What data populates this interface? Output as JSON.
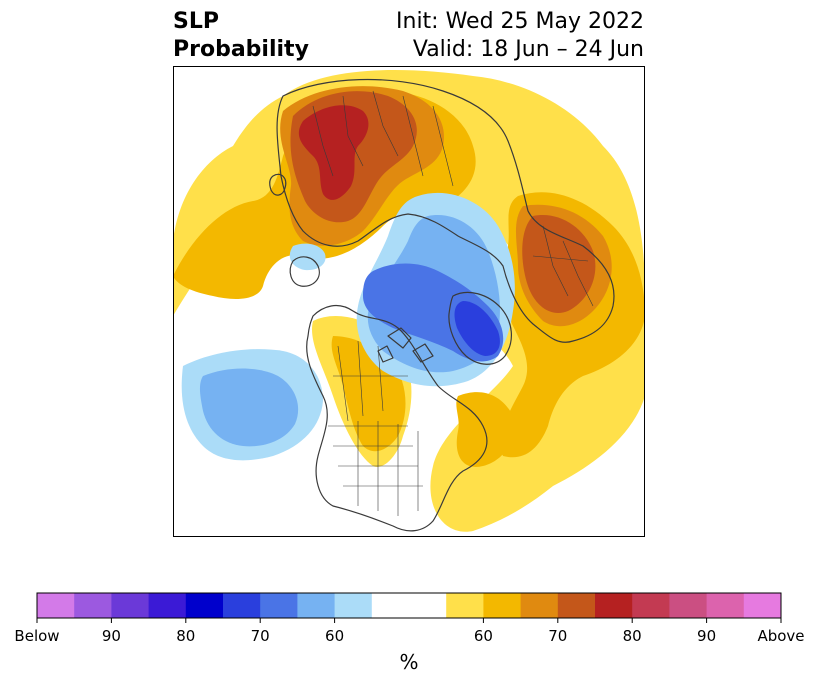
{
  "header": {
    "title_line1": "SLP",
    "title_line2": "Probability",
    "init_text": "Init: Wed 25 May 2022",
    "valid_text": "Valid: 18 Jun – 24 Jun"
  },
  "colorbar": {
    "segments": [
      {
        "color": "#d37ae8"
      },
      {
        "color": "#9c59e0"
      },
      {
        "color": "#6b39d8"
      },
      {
        "color": "#3b1ad6"
      },
      {
        "color": "#0000cc"
      },
      {
        "color": "#2a3fdd"
      },
      {
        "color": "#4a74e6"
      },
      {
        "color": "#76b2f2"
      },
      {
        "color": "#abdcf8"
      },
      {
        "color": "#ffffff"
      },
      {
        "color": "#ffffff"
      },
      {
        "color": "#ffe04a"
      },
      {
        "color": "#f3b800"
      },
      {
        "color": "#e08a10"
      },
      {
        "color": "#c4571a"
      },
      {
        "color": "#b52121"
      },
      {
        "color": "#c33a52"
      },
      {
        "color": "#cb4f82"
      },
      {
        "color": "#dc63ad"
      },
      {
        "color": "#e67ae0"
      }
    ],
    "tick_labels": [
      {
        "boundary": 0,
        "text": "Below"
      },
      {
        "boundary": 2,
        "text": "90"
      },
      {
        "boundary": 4,
        "text": "80"
      },
      {
        "boundary": 6,
        "text": "70"
      },
      {
        "boundary": 8,
        "text": "60"
      },
      {
        "boundary": 12,
        "text": "60"
      },
      {
        "boundary": 14,
        "text": "70"
      },
      {
        "boundary": 16,
        "text": "80"
      },
      {
        "boundary": 18,
        "text": "90"
      },
      {
        "boundary": 20,
        "text": "Above"
      }
    ],
    "unit_label": "%"
  },
  "map": {
    "land_outline_color": "#3a3a3a",
    "anomaly_regions": [
      {
        "name": "north-atlantic-above",
        "category": "above-60",
        "color": "#ffe04a"
      },
      {
        "name": "europe-above",
        "category": "above-70-80",
        "color": "#c4571a"
      },
      {
        "name": "europe-core",
        "category": "above-80",
        "color": "#b52121"
      },
      {
        "name": "east-asia-above",
        "category": "above-70",
        "color": "#e08a10"
      },
      {
        "name": "arctic-below",
        "category": "below-70-80",
        "color": "#4a74e6"
      },
      {
        "name": "pacific-below",
        "category": "below-60",
        "color": "#abdcf8"
      },
      {
        "name": "north-america-above",
        "category": "above-60-70",
        "color": "#f3b800"
      }
    ]
  }
}
